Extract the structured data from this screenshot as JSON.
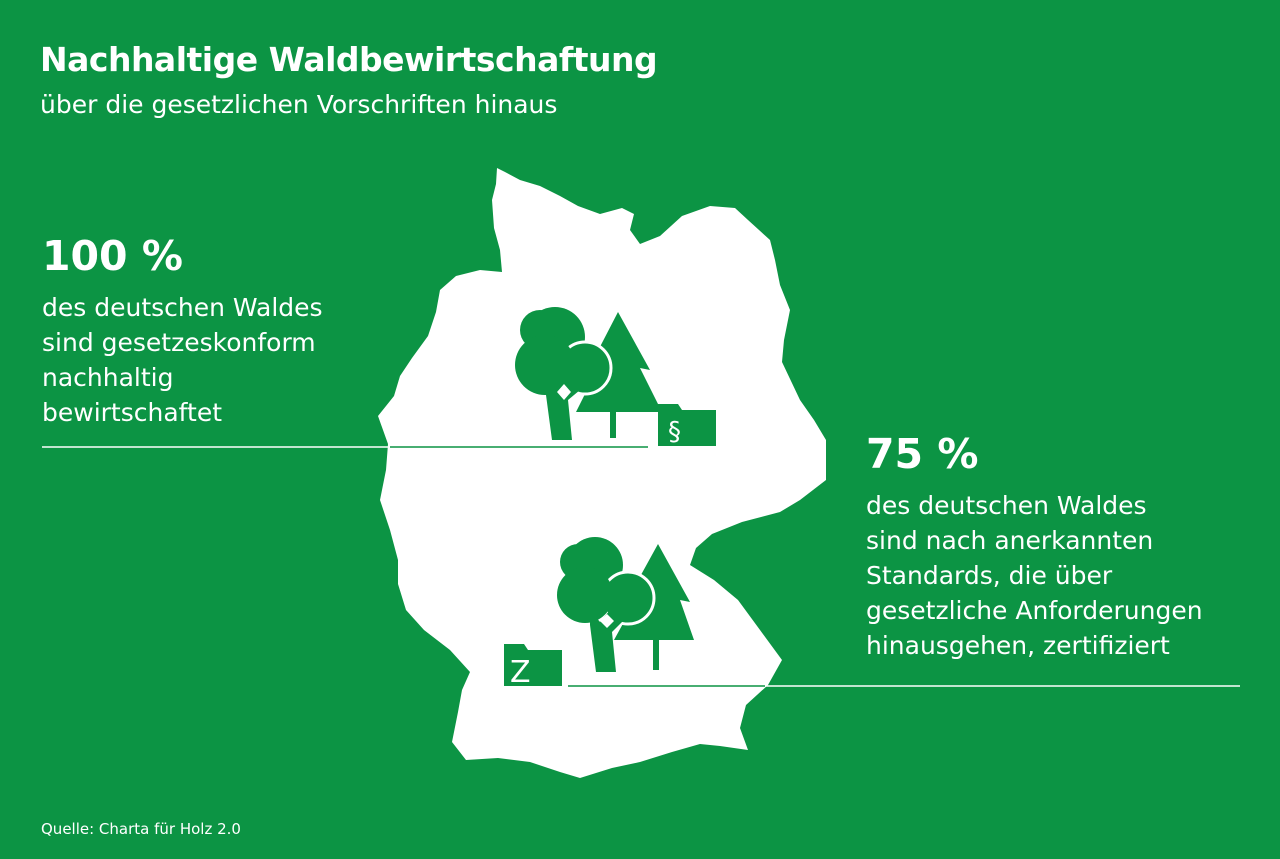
{
  "header": {
    "title": "Nachhaltige Waldbewirtschaftung",
    "subtitle": "über die gesetzlichen Vorschriften hinaus"
  },
  "stats": [
    {
      "value": "100 %",
      "description_lines": [
        "des deutschen Waldes",
        "sind gesetzeskonform",
        "nachhaltig",
        "bewirtschaftet"
      ],
      "icon": "law-paragraph-folder-icon",
      "folder_symbol": "§"
    },
    {
      "value": "75 %",
      "description_lines": [
        "des deutschen Waldes",
        "sind nach anerkannten",
        "Standards, die über",
        "gesetzliche Anforderungen",
        "hinausgehen, zertifiziert"
      ],
      "icon": "certificate-folder-icon",
      "folder_symbol": "Z"
    }
  ],
  "source": "Quelle: Charta für Holz 2.0",
  "colors": {
    "background": "#0c9444",
    "map": "#ffffff"
  }
}
